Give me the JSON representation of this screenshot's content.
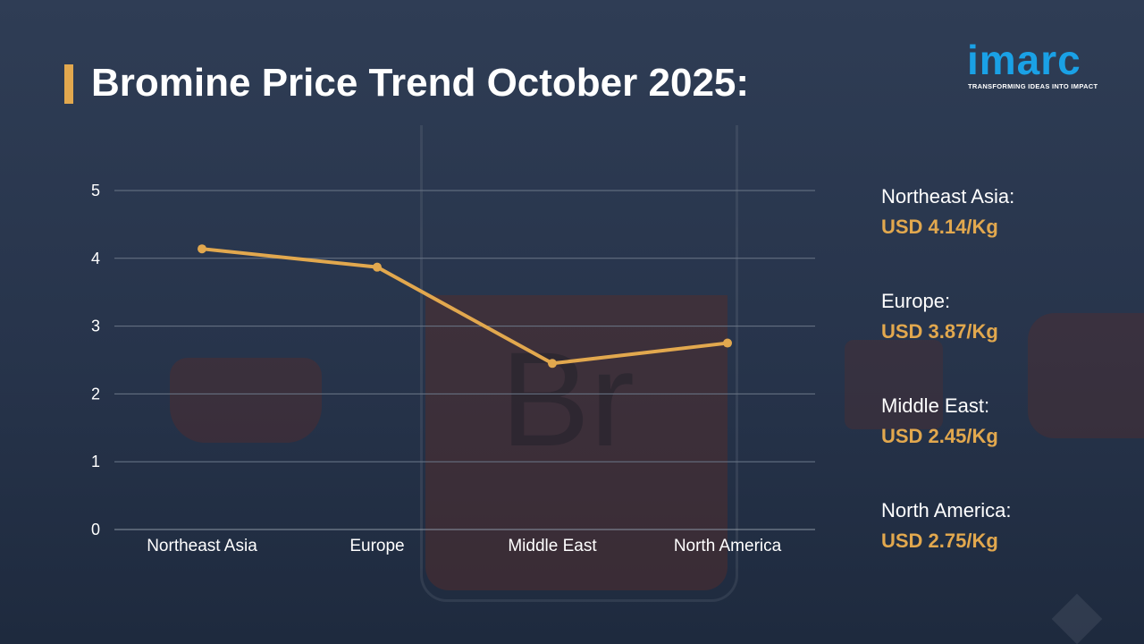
{
  "title": "Bromine Price Trend October 2025:",
  "logo": {
    "wordmark": "imarc",
    "tagline": "TRANSFORMING IDEAS INTO IMPACT",
    "color": "#1aa1e6"
  },
  "colors": {
    "accent": "#e2a84e",
    "text": "#ffffff",
    "grid": "#6b7788"
  },
  "chart_data": {
    "type": "line",
    "categories": [
      "Northeast Asia",
      "Europe",
      "Middle East",
      "North America"
    ],
    "values": [
      4.14,
      3.87,
      2.45,
      2.75
    ],
    "yticks": [
      "0",
      "1",
      "2",
      "3",
      "4",
      "5"
    ],
    "ylim": [
      0,
      5
    ],
    "grid": true,
    "legend": "none",
    "series_color": "#e2a84e"
  },
  "prices": [
    {
      "region": "Northeast Asia:",
      "price": "USD 4.14/Kg"
    },
    {
      "region": "Europe:",
      "price": "USD 3.87/Kg"
    },
    {
      "region": "Middle East:",
      "price": "USD 2.45/Kg"
    },
    {
      "region": "North America:",
      "price": "USD 2.75/Kg"
    }
  ]
}
